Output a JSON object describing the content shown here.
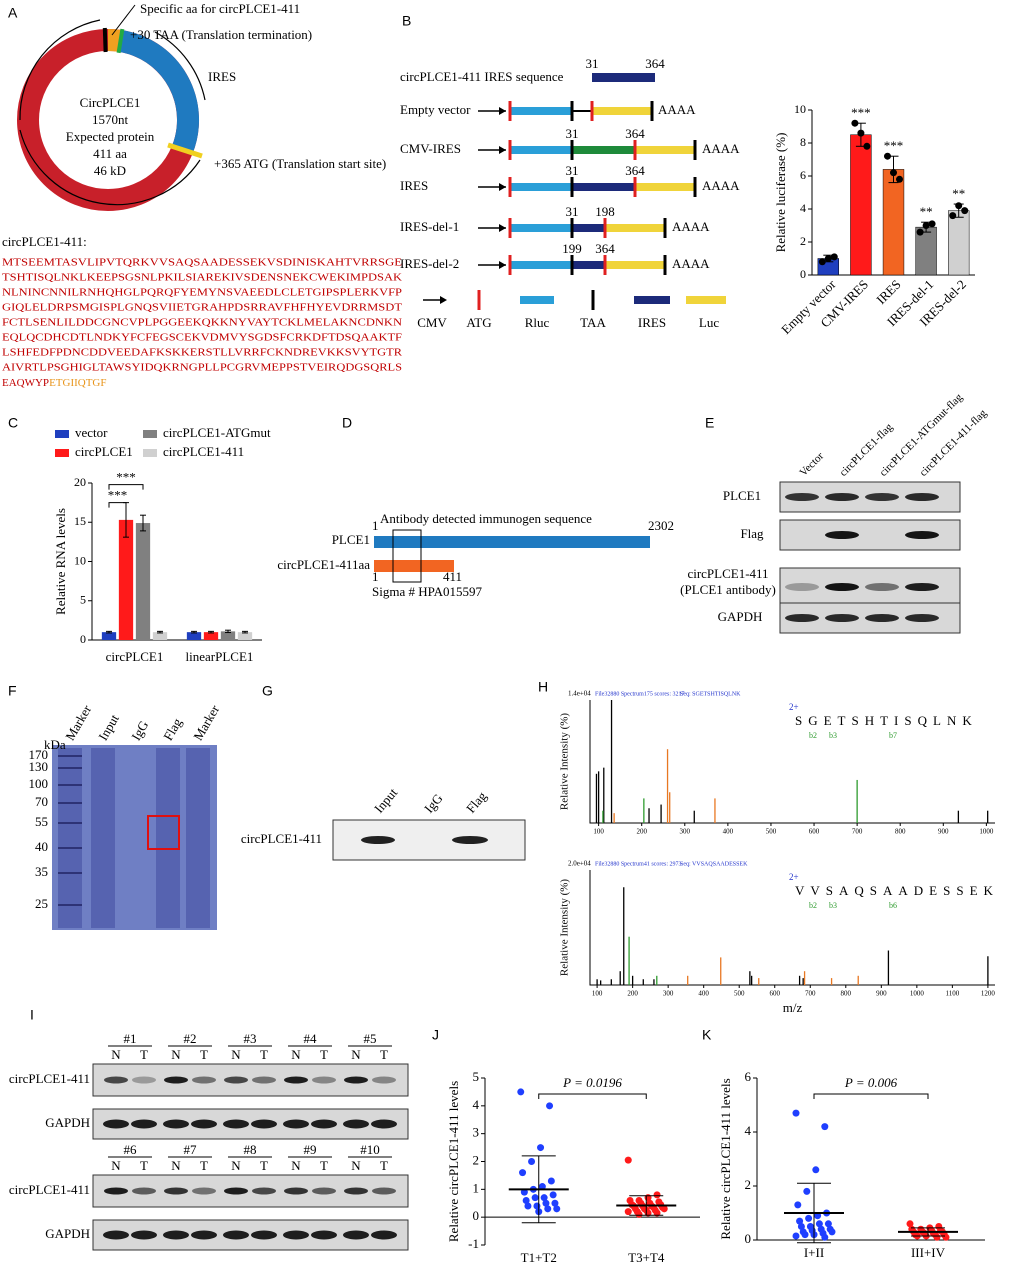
{
  "panel_labels": [
    "A",
    "B",
    "C",
    "D",
    "E",
    "F",
    "G",
    "H",
    "I",
    "J",
    "K"
  ],
  "panel_a": {
    "notes": [
      "Specific aa for circPLCE1-411",
      "+30 TAA (Translation termination)",
      "IRES",
      "+365 ATG (Translation start site)"
    ],
    "center": [
      "CircPLCE1",
      "1570nt",
      "Expected protein",
      "411 aa",
      "46 kD"
    ],
    "seq_title": "circPLCE1-411:",
    "sequence": [
      "MTSEEMTASVLIPVTQRKVVSAQSAADESSEKVSDINISKAHTVRRSGE",
      "TSHTISQLNKLKEEPSGSNLPKILSIAREKIVSDENSNEKCWEKIMPDSAK",
      "NLNINCNNILRNHQHGLPQRQFYEMYNSVAEEDLCLETGIPSPLERKVFP",
      "GIQLELDRPSMGISPLGNQSVIIETGRAHPDSRRAVFHFHYEVDRRMSDT",
      "FCTLSENLILDDCGNCVPLPGGEEKQKKNYVAYTCKLMELAKNCDNKN",
      "EQLQCDHCDTLNDKYFCFEGSCEKVDMVYSGDSFCRKDFTDSQAAKTF",
      "LSHFEDFPDNCDDVEEDAFKSKKERSTLLVRRFCKNDREVKKSVYTGTR",
      "AIVRTLPSGHIGLTAWSYIDQKRNGPLLPCGRVMEPPSTVEIRQDGSQRLS"
    ],
    "sequence_tail": [
      "EAQWYP",
      "ETGIIQTGF"
    ]
  },
  "panel_b_scheme": {
    "title": "circPLCE1-411 IRES sequence",
    "title_marks": [
      31,
      364
    ],
    "rows": [
      {
        "label": "Empty vector"
      },
      {
        "label": "CMV-IRES",
        "marks": [
          31,
          364
        ]
      },
      {
        "label": "IRES",
        "marks": [
          31,
          364
        ]
      },
      {
        "label": "IRES-del-1",
        "marks": [
          31,
          198
        ]
      },
      {
        "label": "IRES-del-2",
        "marks": [
          199,
          364
        ]
      }
    ],
    "tail": "AAAA",
    "legend": [
      "CMV",
      "ATG",
      "Rluc",
      "TAA",
      "IRES",
      "Luc"
    ]
  },
  "panel_d": {
    "annotation": "Antibody detected immunogen sequence",
    "rows": [
      "PLCE1",
      "circPLCE1-411aa"
    ],
    "plce1_range": [
      1,
      2302
    ],
    "circ_range": [
      1,
      411
    ],
    "catalog": "Sigma # HPA015597"
  },
  "panel_e": {
    "lanes": [
      "Vector",
      "circPLCE1-flag",
      "circPLCE1-ATGmut-flag",
      "circPLCE1-411-flag"
    ],
    "rows": [
      "PLCE1",
      "Flag",
      "circPLCE1-411",
      "(PLCE1 antibody)",
      "GAPDH"
    ]
  },
  "panel_f": {
    "unit": "kDa",
    "lanes": [
      "Marker",
      "Input",
      "IgG",
      "Flag",
      "Marker"
    ],
    "markers": [
      170,
      130,
      100,
      70,
      55,
      40,
      35,
      25
    ]
  },
  "panel_g": {
    "lanes": [
      "Input",
      "IgG",
      "Flag"
    ],
    "row": "circPLCE1-411"
  },
  "panel_i": {
    "samples_top": [
      "#1",
      "#2",
      "#3",
      "#4",
      "#5"
    ],
    "samples_bottom": [
      "#6",
      "#7",
      "#8",
      "#9",
      "#10"
    ],
    "lane_labels": [
      "N",
      "T"
    ],
    "rows": [
      "circPLCE1-411",
      "GAPDH"
    ]
  },
  "chart_data": [
    {
      "type": "bar",
      "ylabel": "Relative luciferase (%)",
      "categories": [
        "Empty vector",
        "CMV-IRES",
        "IRES",
        "IRES-del-1",
        "IRES-del-2"
      ],
      "values": [
        1.0,
        8.5,
        6.4,
        2.9,
        3.9
      ],
      "errors": [
        0.2,
        0.7,
        0.8,
        0.3,
        0.4
      ],
      "points": [
        [
          0.8,
          1.0,
          1.1
        ],
        [
          9.2,
          8.6,
          7.8
        ],
        [
          7.2,
          6.2,
          5.8
        ],
        [
          2.6,
          3.0,
          3.1
        ],
        [
          3.6,
          4.2,
          3.9
        ]
      ],
      "colors": [
        "#1f3fbf",
        "#ff1a1a",
        "#f26522",
        "#808080",
        "#d0d0d0"
      ],
      "significance": [
        null,
        "***",
        "***",
        "**",
        "**"
      ],
      "ylim": [
        0,
        10
      ],
      "yticks": [
        0,
        2,
        4,
        6,
        8,
        10
      ]
    },
    {
      "type": "grouped_bar",
      "ylabel": "Relative RNA levels",
      "categories": [
        "circPLCE1",
        "linearPLCE1"
      ],
      "series": [
        {
          "name": "vector",
          "color": "#1f3fbf",
          "values": [
            1.0,
            1.0
          ],
          "errors": [
            0.1,
            0.1
          ]
        },
        {
          "name": "circPLCE1",
          "color": "#ff1a1a",
          "values": [
            15.3,
            1.0
          ],
          "errors": [
            2.2,
            0.1
          ]
        },
        {
          "name": "circPLCE1-ATGmut",
          "color": "#808080",
          "values": [
            14.9,
            1.1
          ],
          "errors": [
            1.0,
            0.15
          ]
        },
        {
          "name": "circPLCE1-411",
          "color": "#d0d0d0",
          "values": [
            1.0,
            1.0
          ],
          "errors": [
            0.1,
            0.1
          ]
        }
      ],
      "annotations": [
        "***",
        "***"
      ],
      "ylim": [
        0,
        20
      ],
      "yticks": [
        0,
        5,
        10,
        15,
        20
      ]
    },
    {
      "type": "stem",
      "header": "1.4e+04",
      "info": "File32880 Spectrum175 scores: 3217",
      "seq_label": "Seq:  SGETSHTISQLNK",
      "peptide": "SGETSHTISQLNK",
      "charge": "2+",
      "ions": [
        "b2",
        "b3",
        "b7"
      ],
      "ylabel": "Relative  Intensity (%)",
      "series": [
        {
          "color": "#000000",
          "x": [
            95,
            100,
            112,
            130,
            217,
            245,
            322,
            935,
            1003
          ],
          "values": [
            40,
            42,
            45,
            100,
            12,
            15,
            10,
            10,
            10
          ]
        },
        {
          "color": "#e87722",
          "x": [
            136,
            260,
            265,
            370
          ],
          "values": [
            8,
            60,
            25,
            20
          ]
        },
        {
          "color": "#2e9b2e",
          "x": [
            110,
            205,
            700
          ],
          "values": [
            10,
            20,
            35
          ]
        }
      ],
      "xlim": [
        80,
        1020
      ],
      "xticks": [
        100,
        200,
        300,
        400,
        500,
        600,
        700,
        800,
        900,
        1000
      ],
      "ylim": [
        0,
        100
      ]
    },
    {
      "type": "stem",
      "header": "2.0e+04",
      "info": "File32880 Spectrum41 scores: 2973",
      "seq_label": "Seq:  VVSAQSAADESSEK",
      "peptide": "VVSAQSAADESSEK",
      "charge": "2+",
      "ions": [
        "b2",
        "b3",
        "b6"
      ],
      "ylabel": "Relative  Intensity (%)",
      "xlabel": "m/z",
      "series": [
        {
          "color": "#000000",
          "x": [
            100,
            110,
            140,
            165,
            175,
            200,
            230,
            260,
            530,
            535,
            670,
            680,
            920,
            1200
          ],
          "values": [
            5,
            4,
            5,
            12,
            85,
            8,
            5,
            5,
            12,
            8,
            8,
            6,
            30,
            25
          ]
        },
        {
          "color": "#e87722",
          "x": [
            355,
            448,
            555,
            684,
            760,
            835
          ],
          "values": [
            8,
            24,
            6,
            12,
            6,
            8
          ]
        },
        {
          "color": "#2e9b2e",
          "x": [
            190,
            268
          ],
          "values": [
            42,
            8
          ]
        }
      ],
      "xlim": [
        80,
        1220
      ],
      "xticks": [
        100,
        200,
        300,
        400,
        500,
        600,
        700,
        800,
        900,
        1000,
        1100,
        1200
      ],
      "ylim": [
        0,
        100
      ]
    },
    {
      "type": "dot",
      "ylabel": "Relative circPLCE1-411 levels",
      "categories": [
        "T1+T2",
        "T3+T4"
      ],
      "colors": [
        "#1f3fff",
        "#ff1a1a"
      ],
      "values": [
        [
          4.5,
          4.0,
          2.5,
          2.0,
          1.6,
          1.3,
          1.1,
          1.0,
          0.9,
          0.8,
          0.7,
          0.7,
          0.6,
          0.5,
          0.5,
          0.4,
          0.4,
          0.3,
          0.3,
          0.2
        ],
        [
          2.05,
          0.8,
          0.7,
          0.6,
          0.6,
          0.55,
          0.5,
          0.5,
          0.45,
          0.45,
          0.4,
          0.4,
          0.4,
          0.35,
          0.35,
          0.3,
          0.3,
          0.3,
          0.25,
          0.25,
          0.2,
          0.2,
          0.15,
          0.15,
          0.1
        ]
      ],
      "means": [
        1.0,
        0.42
      ],
      "sds": [
        1.2,
        0.35
      ],
      "p_label": "P = 0.0196",
      "ylim": [
        -1,
        5
      ],
      "yticks": [
        -1,
        0,
        1,
        2,
        3,
        4,
        5
      ]
    },
    {
      "type": "dot",
      "ylabel": "Relative circPLCE1-411 levels",
      "categories": [
        "I+II",
        "III+IV"
      ],
      "colors": [
        "#1f3fff",
        "#ff1a1a"
      ],
      "values": [
        [
          4.7,
          4.2,
          2.6,
          1.8,
          1.3,
          1.0,
          0.9,
          0.8,
          0.7,
          0.6,
          0.6,
          0.5,
          0.5,
          0.4,
          0.4,
          0.35,
          0.3,
          0.3,
          0.25,
          0.2,
          0.2,
          0.15,
          0.1
        ],
        [
          0.6,
          0.5,
          0.45,
          0.4,
          0.4,
          0.35,
          0.35,
          0.3,
          0.3,
          0.3,
          0.25,
          0.25,
          0.2,
          0.2,
          0.2,
          0.15,
          0.15,
          0.1,
          0.1
        ]
      ],
      "means": [
        1.0,
        0.3
      ],
      "sds": [
        1.1,
        0.15
      ],
      "p_label": "P = 0.006",
      "ylim": [
        0,
        6
      ],
      "yticks": [
        0,
        2,
        4,
        6
      ]
    }
  ]
}
